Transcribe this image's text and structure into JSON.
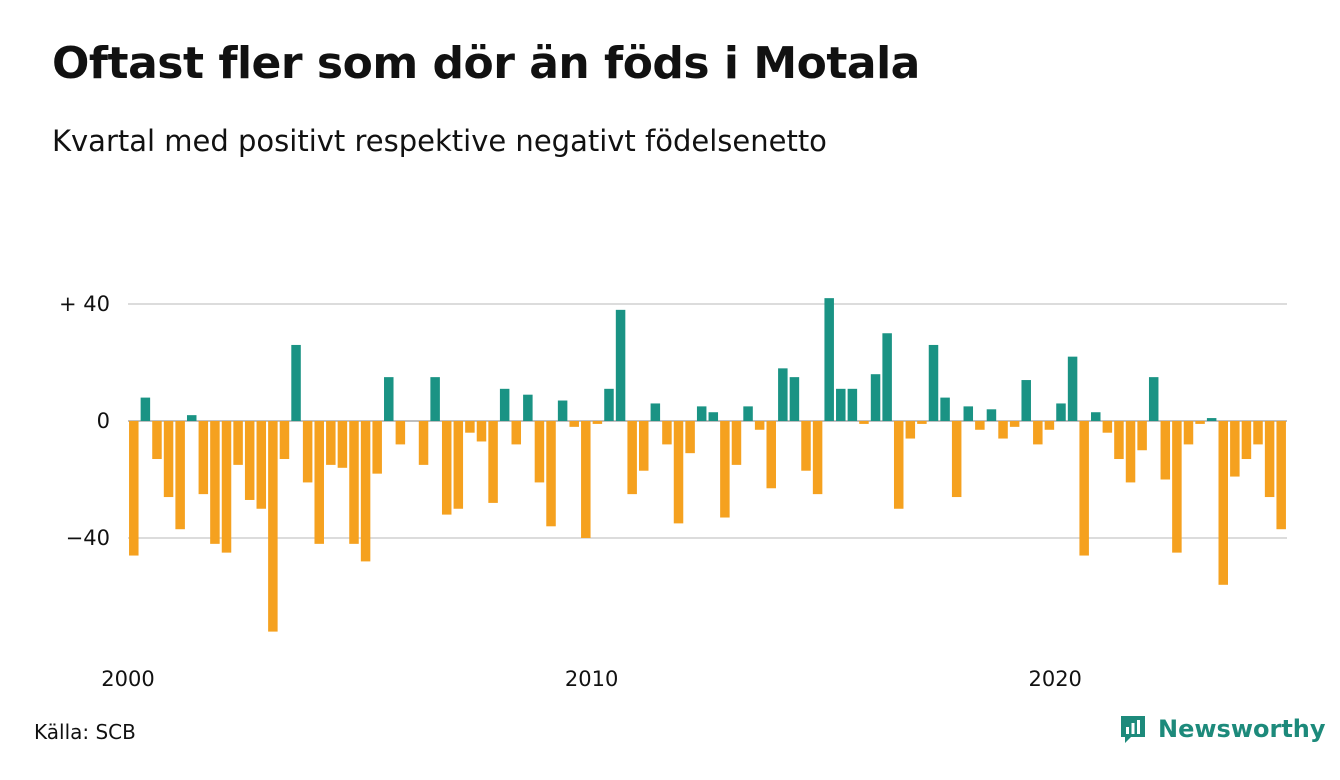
{
  "title": "Oftast fler som dör än föds i Motala",
  "subtitle": "Kvartal med positivt respektive negativt födelsenetto",
  "source": "Källa: SCB",
  "brand": "Newsworthy",
  "colors": {
    "positive": "#1a9384",
    "negative": "#f5a11f",
    "grid": "#dcdcdc",
    "brand": "#1d8a7b"
  },
  "chart_data": {
    "type": "bar",
    "ylim": [
      -72,
      43
    ],
    "yticks": [
      {
        "value": 40,
        "label": "+ 40"
      },
      {
        "value": 0,
        "label": "0"
      },
      {
        "value": -40,
        "label": "−40"
      }
    ],
    "xticks": [
      {
        "index": 0,
        "label": "2000"
      },
      {
        "index": 40,
        "label": "2010"
      },
      {
        "index": 80,
        "label": "2020"
      }
    ],
    "grid": true,
    "values": [
      -46,
      8,
      -13,
      -26,
      -37,
      2,
      -25,
      -42,
      -45,
      -15,
      -27,
      -30,
      -72,
      -13,
      26,
      -21,
      -42,
      -15,
      -16,
      -42,
      -48,
      -18,
      15,
      -8,
      0,
      -15,
      15,
      -32,
      -30,
      -4,
      -7,
      -28,
      11,
      -8,
      9,
      -21,
      -36,
      7,
      -2,
      -40,
      -1,
      11,
      38,
      -25,
      -17,
      6,
      -8,
      -35,
      -11,
      5,
      3,
      -33,
      -15,
      5,
      -3,
      -23,
      18,
      15,
      -17,
      -25,
      42,
      11,
      11,
      -1,
      16,
      30,
      -30,
      -6,
      -1,
      26,
      8,
      -26,
      5,
      -3,
      4,
      -6,
      -2,
      14,
      -8,
      -3,
      6,
      22,
      -46,
      3,
      -4,
      -13,
      -21,
      -10,
      15,
      -20,
      -45,
      -8,
      -1,
      1,
      -56,
      -19,
      -13,
      -8,
      -26,
      -37
    ]
  }
}
